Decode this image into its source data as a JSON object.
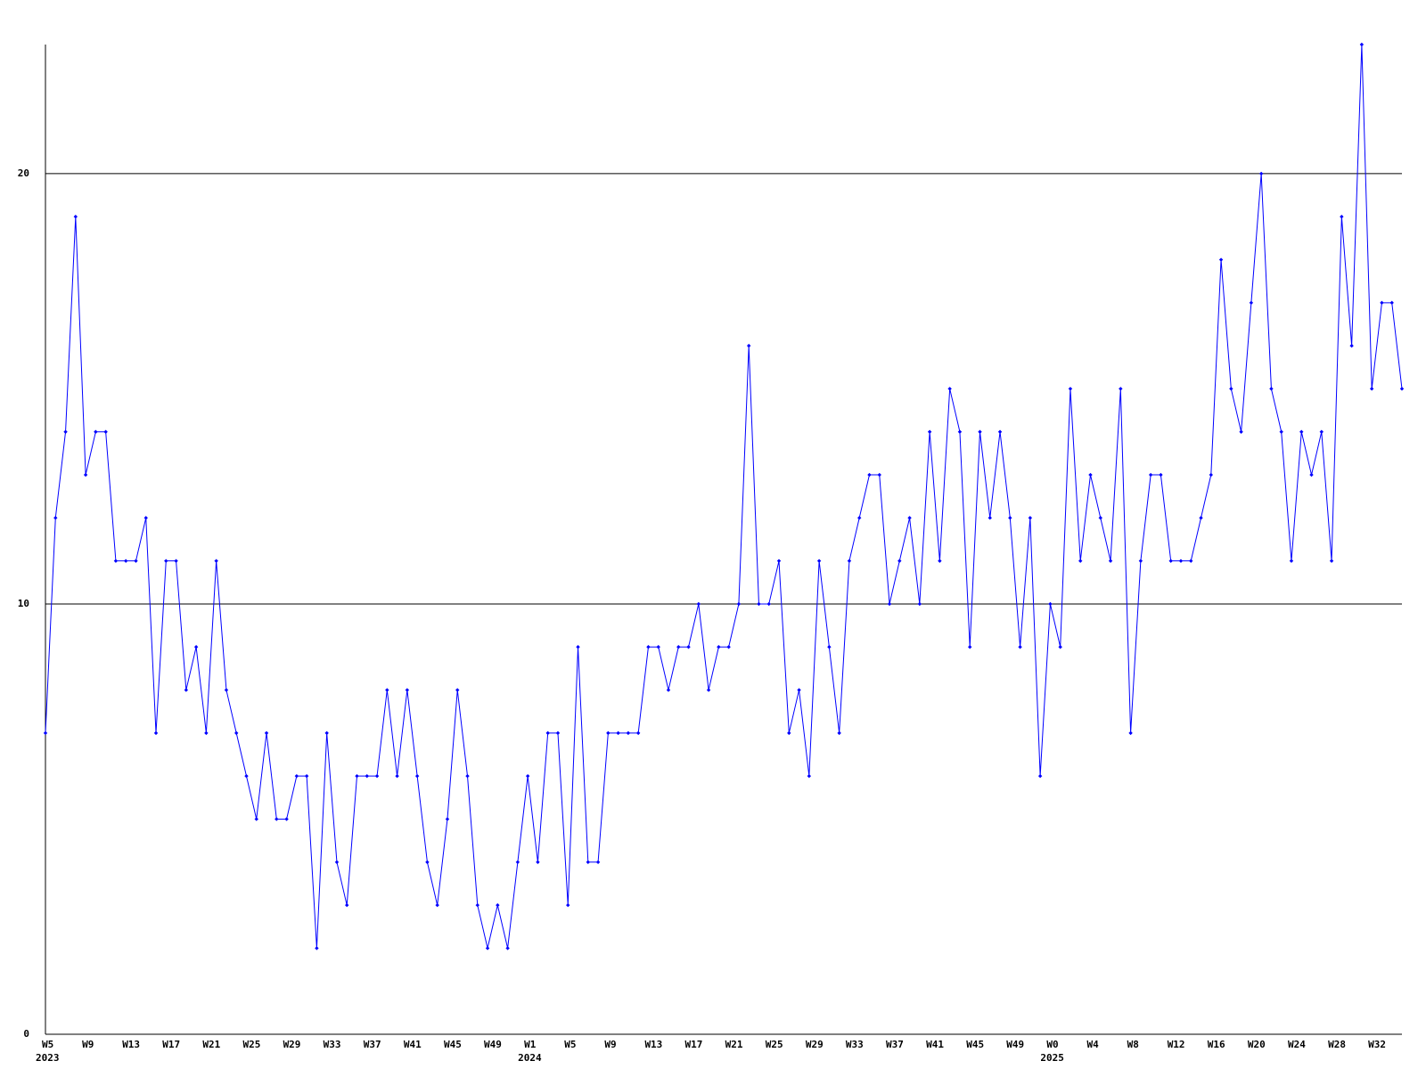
{
  "chart_data": {
    "type": "line",
    "categories": [
      "W5",
      null,
      null,
      null,
      "W9",
      null,
      null,
      null,
      "W13",
      null,
      null,
      null,
      "W17",
      null,
      null,
      null,
      "W21",
      null,
      null,
      null,
      "W25",
      null,
      null,
      null,
      "W29",
      null,
      null,
      null,
      "W33",
      null,
      null,
      null,
      "W37",
      null,
      null,
      null,
      "W41",
      null,
      null,
      null,
      "W45",
      null,
      null,
      null,
      "W49",
      null,
      null,
      null,
      "W1",
      null,
      null,
      null,
      "W5",
      null,
      null,
      null,
      "W9",
      null,
      null,
      null,
      "W13",
      null,
      null,
      null,
      "W17",
      null,
      null,
      null,
      "W21",
      null,
      null,
      null,
      "W25",
      null,
      null,
      null,
      "W29",
      null,
      null,
      null,
      "W33",
      null,
      null,
      null,
      "W37",
      null,
      null,
      null,
      "W41",
      null,
      null,
      null,
      "W45",
      null,
      null,
      null,
      "W49",
      null,
      null,
      null,
      "W0",
      null,
      null,
      null,
      "W4",
      null,
      null,
      null,
      "W8",
      null,
      null,
      null,
      "W12",
      null,
      null,
      null,
      "W16",
      null,
      null,
      null,
      "W20",
      null,
      null,
      null,
      "W24",
      null,
      null,
      null,
      "W28",
      null,
      null,
      null,
      "W32",
      null,
      null,
      null
    ],
    "year_labels": [
      "2023",
      null,
      null,
      null,
      null,
      null,
      null,
      null,
      null,
      null,
      null,
      null,
      null,
      null,
      null,
      null,
      null,
      null,
      null,
      null,
      null,
      null,
      null,
      null,
      null,
      null,
      null,
      null,
      null,
      null,
      null,
      null,
      null,
      null,
      null,
      null,
      null,
      null,
      null,
      null,
      null,
      null,
      null,
      null,
      null,
      null,
      null,
      null,
      "2024",
      null,
      null,
      null,
      null,
      null,
      null,
      null,
      null,
      null,
      null,
      null,
      null,
      null,
      null,
      null,
      null,
      null,
      null,
      null,
      null,
      null,
      null,
      null,
      null,
      null,
      null,
      null,
      null,
      null,
      null,
      null,
      null,
      null,
      null,
      null,
      null,
      null,
      null,
      null,
      null,
      null,
      null,
      null,
      null,
      null,
      null,
      null,
      null,
      null,
      null,
      null,
      "2025",
      null,
      null,
      null,
      null,
      null,
      null,
      null,
      null,
      null,
      null,
      null,
      null,
      null,
      null,
      null,
      null,
      null,
      null,
      null,
      null,
      null,
      null,
      null,
      null,
      null,
      null,
      null,
      null,
      null,
      null,
      null,
      null,
      null,
      null,
      null
    ],
    "series": [
      {
        "color": "#0000ff",
        "values": [
          7,
          12,
          14,
          19,
          13,
          14,
          14,
          11,
          11,
          11,
          12,
          7,
          11,
          11,
          8,
          9,
          7,
          11,
          8,
          7,
          6,
          5,
          7,
          5,
          5,
          6,
          6,
          2,
          7,
          4,
          3,
          6,
          6,
          6,
          8,
          6,
          8,
          6,
          4,
          3,
          5,
          8,
          6,
          3,
          2,
          3,
          2,
          4,
          6,
          4,
          7,
          7,
          3,
          9,
          4,
          4,
          7,
          7,
          7,
          7,
          9,
          9,
          8,
          9,
          9,
          10,
          8,
          9,
          9,
          10,
          16,
          10,
          10,
          11,
          7,
          8,
          6,
          11,
          9,
          7,
          11,
          12,
          13,
          13,
          10,
          11,
          12,
          10,
          14,
          11,
          15,
          14,
          9,
          14,
          12,
          14,
          12,
          9,
          12,
          6,
          10,
          9,
          15,
          11,
          13,
          12,
          11,
          15,
          7,
          11,
          13,
          13,
          11,
          11,
          11,
          12,
          13,
          18,
          15,
          14,
          17,
          20,
          15,
          14,
          11,
          14,
          13,
          14,
          11,
          19,
          16,
          23,
          15,
          17,
          17,
          15
        ]
      }
    ],
    "ylim": [
      0,
      23
    ],
    "yticks": [
      0,
      10,
      20
    ],
    "grid": true
  }
}
